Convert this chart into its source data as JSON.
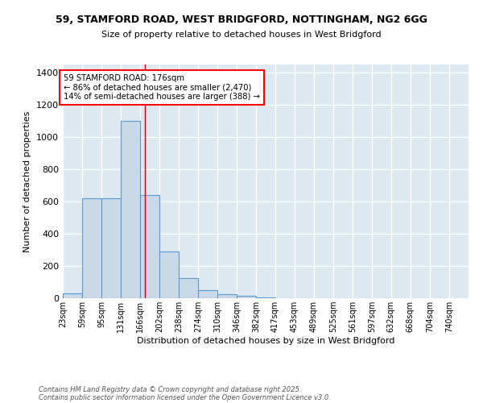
{
  "title1": "59, STAMFORD ROAD, WEST BRIDGFORD, NOTTINGHAM, NG2 6GG",
  "title2": "Size of property relative to detached houses in West Bridgford",
  "xlabel": "Distribution of detached houses by size in West Bridgford",
  "ylabel": "Number of detached properties",
  "bin_labels": [
    "23sqm",
    "59sqm",
    "95sqm",
    "131sqm",
    "166sqm",
    "202sqm",
    "238sqm",
    "274sqm",
    "310sqm",
    "346sqm",
    "382sqm",
    "417sqm",
    "453sqm",
    "489sqm",
    "525sqm",
    "561sqm",
    "597sqm",
    "632sqm",
    "668sqm",
    "704sqm",
    "740sqm"
  ],
  "bin_edges": [
    23,
    59,
    95,
    131,
    166,
    202,
    238,
    274,
    310,
    346,
    382,
    417,
    453,
    489,
    525,
    561,
    597,
    632,
    668,
    704,
    740
  ],
  "bar_heights": [
    30,
    620,
    620,
    1100,
    640,
    290,
    125,
    50,
    25,
    15,
    5,
    0,
    0,
    0,
    0,
    0,
    0,
    0,
    0,
    0
  ],
  "bar_color": "#c9d9e8",
  "bar_edge_color": "#5b9bd5",
  "background_color": "#dde8f0",
  "grid_color": "#ffffff",
  "vline_x": 176,
  "vline_color": "#cc0000",
  "annotation_text": "59 STAMFORD ROAD: 176sqm\n← 86% of detached houses are smaller (2,470)\n14% of semi-detached houses are larger (388) →",
  "ylim": [
    0,
    1450
  ],
  "yticks": [
    0,
    200,
    400,
    600,
    800,
    1000,
    1200,
    1400
  ],
  "footnote1": "Contains HM Land Registry data © Crown copyright and database right 2025.",
  "footnote2": "Contains public sector information licensed under the Open Government Licence v3.0."
}
